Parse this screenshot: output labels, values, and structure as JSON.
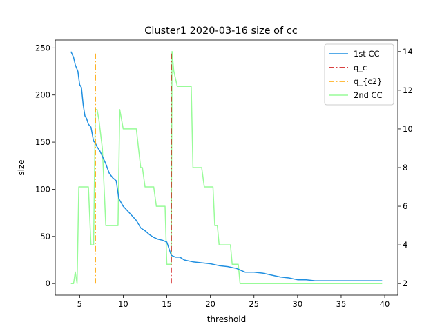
{
  "chart_data": {
    "type": "line",
    "title": "Cluster1 2020-03-16 size of cc",
    "xlabel": "threshold",
    "ylabel": "size",
    "y2label": "",
    "xlim": [
      2.2,
      41.5
    ],
    "ylim": [
      -12.3,
      258.3
    ],
    "y2lim": [
      1.4,
      14.6
    ],
    "grid": false,
    "legend_position": "top-right",
    "xticks": [
      5,
      10,
      15,
      20,
      25,
      30,
      35,
      40
    ],
    "yticks": [
      0,
      50,
      100,
      150,
      200,
      250
    ],
    "y2ticks": [
      2,
      4,
      6,
      8,
      10,
      12,
      14
    ],
    "series": [
      {
        "name": "1st CC",
        "axis": "left",
        "color": "#1f8fe0",
        "style": "solid",
        "points": [
          [
            4.0,
            246
          ],
          [
            4.3,
            240
          ],
          [
            4.5,
            232
          ],
          [
            4.8,
            225
          ],
          [
            5.0,
            211
          ],
          [
            5.2,
            208
          ],
          [
            5.4,
            190
          ],
          [
            5.6,
            178
          ],
          [
            5.8,
            175
          ],
          [
            6.0,
            169
          ],
          [
            6.3,
            166
          ],
          [
            6.6,
            151
          ],
          [
            6.8,
            149
          ],
          [
            7.0,
            145
          ],
          [
            7.3,
            141
          ],
          [
            7.6,
            135
          ],
          [
            8.0,
            127
          ],
          [
            8.4,
            117
          ],
          [
            8.8,
            112
          ],
          [
            9.2,
            109
          ],
          [
            9.5,
            90
          ],
          [
            10.0,
            82
          ],
          [
            10.5,
            77
          ],
          [
            11.0,
            72
          ],
          [
            11.5,
            67
          ],
          [
            12.0,
            59
          ],
          [
            12.5,
            56
          ],
          [
            13.0,
            52
          ],
          [
            13.5,
            49
          ],
          [
            14.0,
            47
          ],
          [
            14.5,
            46
          ],
          [
            15.0,
            44
          ],
          [
            15.5,
            30
          ],
          [
            16.0,
            28
          ],
          [
            16.5,
            28
          ],
          [
            17.0,
            25
          ],
          [
            18.0,
            23
          ],
          [
            19.0,
            22
          ],
          [
            20.0,
            21
          ],
          [
            21.0,
            19
          ],
          [
            22.0,
            18
          ],
          [
            23.0,
            16
          ],
          [
            23.5,
            14
          ],
          [
            24.0,
            12
          ],
          [
            25.0,
            12
          ],
          [
            26.0,
            11
          ],
          [
            27.0,
            9
          ],
          [
            28.0,
            7
          ],
          [
            29.0,
            6
          ],
          [
            30.0,
            4
          ],
          [
            31.0,
            4
          ],
          [
            32.0,
            3
          ],
          [
            34.0,
            3
          ],
          [
            36.0,
            3
          ],
          [
            38.0,
            3
          ],
          [
            39.7,
            3
          ]
        ]
      },
      {
        "name": "q_c",
        "axis": "left",
        "color": "#cc0000",
        "style": "dashdot",
        "points": [
          [
            15.5,
            0
          ],
          [
            15.5,
            246
          ]
        ]
      },
      {
        "name": "q_{c2}",
        "axis": "left",
        "color": "#ffa500",
        "style": "dashdot",
        "points": [
          [
            6.8,
            0
          ],
          [
            6.8,
            246
          ]
        ]
      },
      {
        "name": "2nd CC",
        "axis": "right",
        "color": "#98fb98",
        "style": "solid",
        "points": [
          [
            4.0,
            2
          ],
          [
            4.3,
            2
          ],
          [
            4.5,
            2.6
          ],
          [
            4.7,
            2
          ],
          [
            4.9,
            7
          ],
          [
            5.2,
            7
          ],
          [
            5.6,
            7
          ],
          [
            6.0,
            7
          ],
          [
            6.3,
            4
          ],
          [
            6.6,
            4
          ],
          [
            6.8,
            11
          ],
          [
            7.0,
            11
          ],
          [
            7.2,
            10.5
          ],
          [
            7.6,
            9
          ],
          [
            8.0,
            5
          ],
          [
            8.5,
            5
          ],
          [
            9.0,
            5
          ],
          [
            9.4,
            5
          ],
          [
            9.6,
            11
          ],
          [
            10.0,
            10
          ],
          [
            11.0,
            10
          ],
          [
            11.5,
            10
          ],
          [
            12.0,
            8
          ],
          [
            12.2,
            8
          ],
          [
            12.5,
            7
          ],
          [
            13.0,
            7
          ],
          [
            13.5,
            7
          ],
          [
            13.8,
            6
          ],
          [
            14.2,
            6
          ],
          [
            14.8,
            6
          ],
          [
            15.0,
            3
          ],
          [
            15.5,
            3
          ],
          [
            15.6,
            14
          ],
          [
            15.8,
            13
          ],
          [
            16.2,
            12.2
          ],
          [
            17.0,
            12.2
          ],
          [
            17.8,
            12.2
          ],
          [
            18.0,
            8
          ],
          [
            18.5,
            8
          ],
          [
            19.0,
            8
          ],
          [
            19.3,
            7
          ],
          [
            20.0,
            7
          ],
          [
            20.3,
            7
          ],
          [
            20.5,
            5
          ],
          [
            20.8,
            5
          ],
          [
            21.0,
            4
          ],
          [
            21.5,
            4
          ],
          [
            22.0,
            4
          ],
          [
            22.3,
            4
          ],
          [
            22.5,
            3
          ],
          [
            22.8,
            3
          ],
          [
            23.2,
            3
          ],
          [
            23.4,
            2
          ],
          [
            25.0,
            2
          ],
          [
            30.0,
            2
          ],
          [
            35.0,
            2
          ],
          [
            39.7,
            2
          ]
        ]
      }
    ]
  }
}
